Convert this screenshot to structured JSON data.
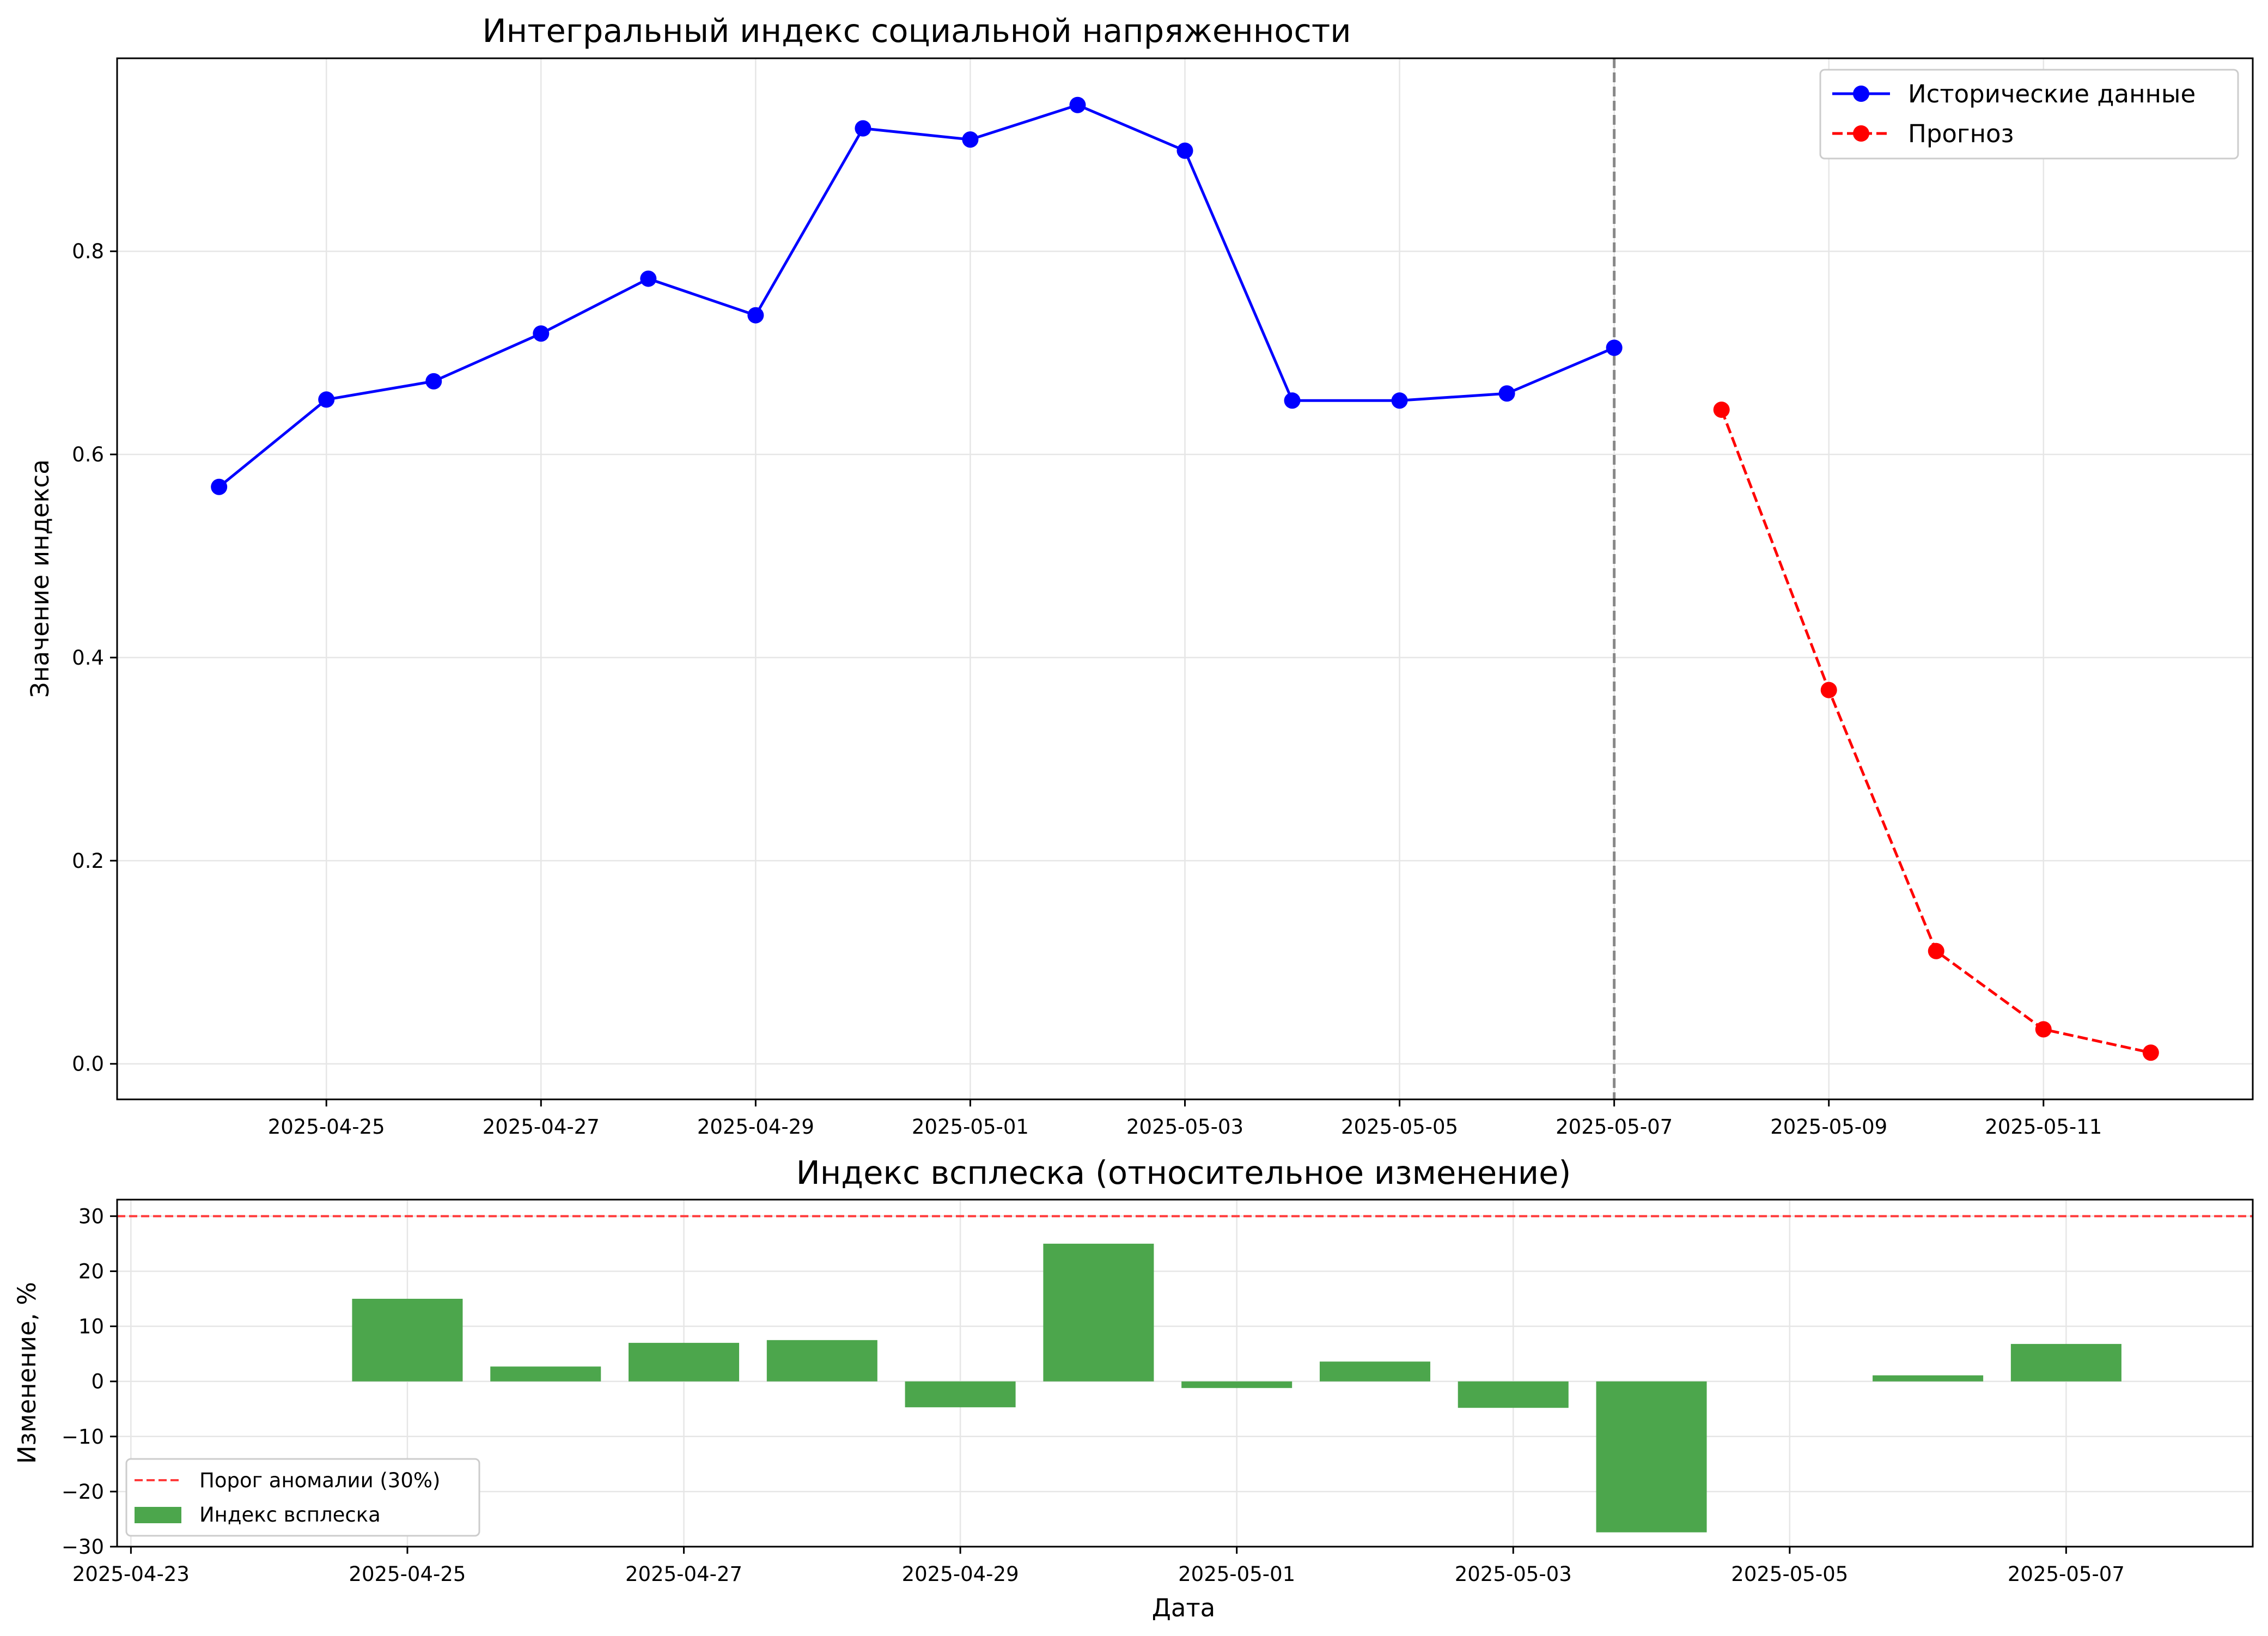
{
  "chart_data": [
    {
      "type": "line",
      "title": "Интегральный индекс социальной напряженности",
      "xlabel": "",
      "ylabel": "Значение индекса",
      "xlim": [
        "2025-04-23 01:12",
        "2025-05-12 22:48"
      ],
      "ylim": [
        -0.035,
        0.99
      ],
      "grid": true,
      "legend_position": "top-right",
      "x_ticks": [
        "2025-04-25",
        "2025-04-27",
        "2025-04-29",
        "2025-05-01",
        "2025-05-03",
        "2025-05-05",
        "2025-05-07",
        "2025-05-09",
        "2025-05-11"
      ],
      "y_ticks": [
        0.0,
        0.2,
        0.4,
        0.6,
        0.8
      ],
      "y_tick_labels": [
        "0.0",
        "0.2",
        "0.4",
        "0.6",
        "0.8"
      ],
      "vline": {
        "x": "2025-05-07",
        "color": "#888888",
        "style": "dashed"
      },
      "series": [
        {
          "name": "Исторические данные",
          "color": "#0000ff",
          "style": "solid",
          "marker": "circle",
          "x": [
            "2025-04-24",
            "2025-04-25",
            "2025-04-26",
            "2025-04-27",
            "2025-04-28",
            "2025-04-29",
            "2025-04-30",
            "2025-05-01",
            "2025-05-02",
            "2025-05-03",
            "2025-05-04",
            "2025-05-05",
            "2025-05-06",
            "2025-05-07"
          ],
          "values": [
            0.568,
            0.654,
            0.672,
            0.719,
            0.773,
            0.737,
            0.921,
            0.91,
            0.944,
            0.899,
            0.653,
            0.653,
            0.66,
            0.705
          ]
        },
        {
          "name": "Прогноз",
          "color": "#ff0000",
          "style": "dashed",
          "marker": "circle",
          "x": [
            "2025-05-08",
            "2025-05-09",
            "2025-05-10",
            "2025-05-11",
            "2025-05-12"
          ],
          "values": [
            0.644,
            0.368,
            0.111,
            0.034,
            0.011
          ]
        }
      ]
    },
    {
      "type": "bar",
      "title": "Индекс всплеска (относительное изменение)",
      "xlabel": "Дата",
      "ylabel": "Изменение, %",
      "xlim": [
        "2025-04-22 21:36",
        "2025-05-08 08:24"
      ],
      "ylim": [
        -30,
        33
      ],
      "grid": true,
      "legend_position": "lower-left",
      "x_ticks": [
        "2025-04-23",
        "2025-04-25",
        "2025-04-27",
        "2025-04-29",
        "2025-05-01",
        "2025-05-03",
        "2025-05-05",
        "2025-05-07"
      ],
      "y_ticks": [
        -30,
        -20,
        -10,
        0,
        10,
        20,
        30
      ],
      "y_tick_labels": [
        "−30",
        "−20",
        "−10",
        "0",
        "10",
        "20",
        "30"
      ],
      "threshold": {
        "name": "Порог аномалии (30%)",
        "value": 30,
        "color": "#ff3b3b",
        "style": "dashed"
      },
      "series": [
        {
          "name": "Индекс всплеска",
          "color": "#4ca64c",
          "x": [
            "2025-04-24",
            "2025-04-25",
            "2025-04-26",
            "2025-04-27",
            "2025-04-28",
            "2025-04-29",
            "2025-04-30",
            "2025-05-01",
            "2025-05-02",
            "2025-05-03",
            "2025-05-04",
            "2025-05-05",
            "2025-05-06",
            "2025-05-07"
          ],
          "values": [
            0,
            15.0,
            2.7,
            7.0,
            7.5,
            -4.7,
            25.0,
            -1.2,
            3.6,
            -4.8,
            -27.4,
            0.0,
            1.1,
            6.8
          ]
        }
      ]
    }
  ]
}
